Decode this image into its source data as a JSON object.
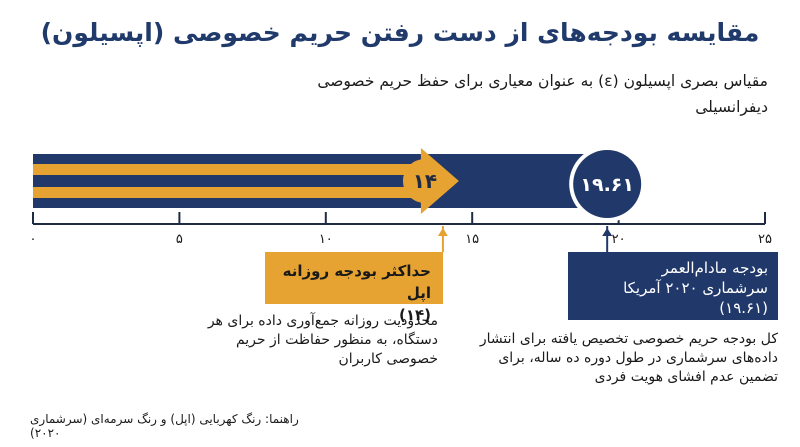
{
  "title": "مقایسه بودجه‌های از دست رفتن حریم خصوصی (اپسیلون)",
  "subtitle": "مقیاس بصری اپسیلون (ε) به عنوان معیاری برای حفظ حریم خصوصی دیفرانسیلی",
  "colors": {
    "apple": "#e6a331",
    "census": "#21386a",
    "axis": "#1f2a44"
  },
  "apple_box": {
    "title": "حداکثر بودجه روزانه اپل",
    "value": "(۱۴)"
  },
  "apple_note": "محدودیت روزانه جمع‌آوری داده برای هر دستگاه، به منظور حفاظت از حریم خصوصی کاربران",
  "census_box": {
    "line1": "بودجه مادام‌العمر",
    "line2": "سرشماری ۲۰۲۰ آمریکا",
    "value": "(۱۹.۶۱)"
  },
  "census_note": "کل بودجه حریم خصوصی تخصیص یافته برای انتشار داده‌های سرشماری در طول دوره ده ساله، برای تضمین عدم افشای هویت فردی",
  "legend": "راهنما: رنگ کهربایی (اپل) و رنگ سرمه‌ای (سرشماری ۲۰۲۰)",
  "chart_data": {
    "type": "bar",
    "orientation": "horizontal",
    "xlim": [
      0,
      25
    ],
    "ticks": [
      {
        "value": 0,
        "label": "۰"
      },
      {
        "value": 5,
        "label": "۵"
      },
      {
        "value": 10,
        "label": "۱۰"
      },
      {
        "value": 15,
        "label": "۱۵"
      },
      {
        "value": 20,
        "label": "۲۰"
      },
      {
        "value": 25,
        "label": "۲۵"
      }
    ],
    "series": [
      {
        "key": "census",
        "value": 19.61,
        "label": "۱۹.۶۱",
        "color": "#21386a"
      },
      {
        "key": "apple",
        "value": 14,
        "label": "۱۴",
        "color": "#e6a331"
      }
    ]
  }
}
